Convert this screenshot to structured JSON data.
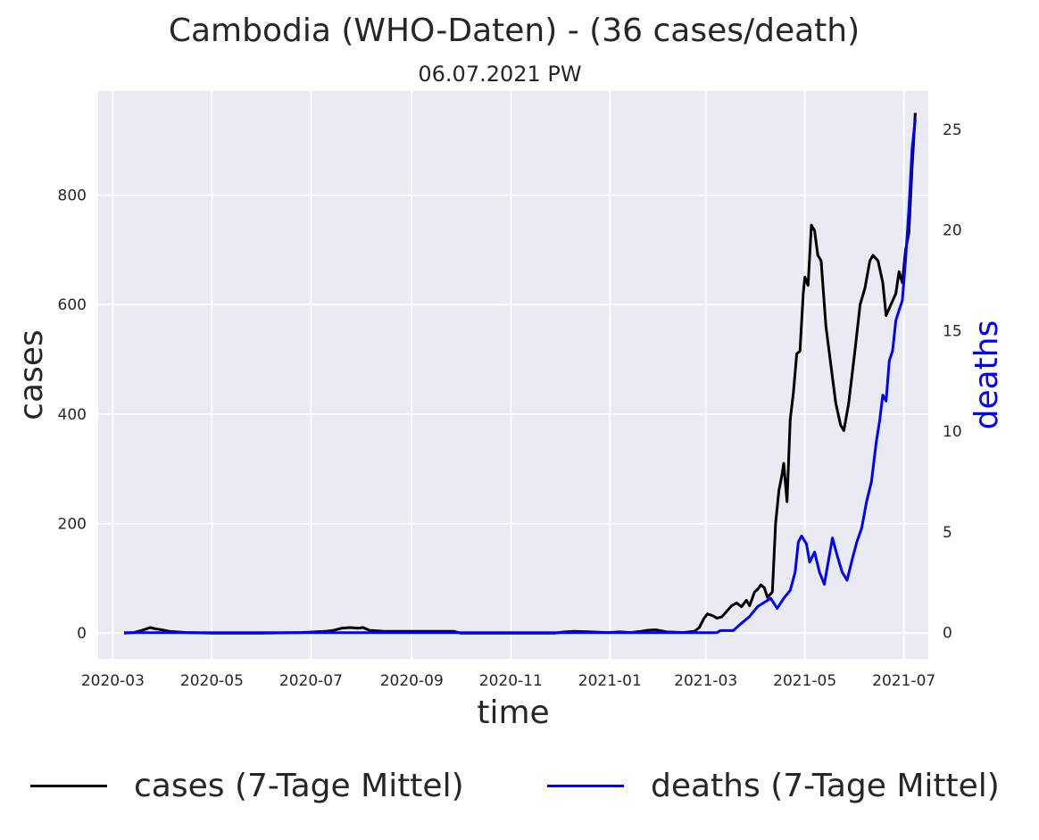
{
  "chart_data": {
    "type": "line",
    "title": "Cambodia (WHO-Daten) - (36 cases/death)",
    "subtitle": "06.07.2021 PW",
    "xlabel": "time",
    "ylabel_left": "cases",
    "ylabel_right": "deaths",
    "x_ticks": [
      "2020-03",
      "2020-05",
      "2020-07",
      "2020-09",
      "2020-11",
      "2021-01",
      "2021-03",
      "2021-05",
      "2021-07"
    ],
    "y_left_ticks": [
      0,
      200,
      400,
      600,
      800
    ],
    "y_right_ticks": [
      0,
      5,
      10,
      15,
      20,
      25
    ],
    "x_range": [
      "2020-02-21",
      "2021-07-16"
    ],
    "y_left_range": [
      -47,
      990
    ],
    "y_right_range": [
      -1.3,
      26.9
    ],
    "grid": true,
    "legend_position": "bottom",
    "background": "#eaeaf2",
    "series": [
      {
        "name": "cases (7-Tage Mittel)",
        "axis": "left",
        "color": "#000000",
        "points": [
          [
            "2020-03-08",
            0
          ],
          [
            "2020-03-14",
            1
          ],
          [
            "2020-03-18",
            4
          ],
          [
            "2020-03-21",
            7
          ],
          [
            "2020-03-24",
            10
          ],
          [
            "2020-03-27",
            8
          ],
          [
            "2020-03-31",
            6
          ],
          [
            "2020-04-05",
            3
          ],
          [
            "2020-04-15",
            1
          ],
          [
            "2020-05-01",
            0
          ],
          [
            "2020-06-01",
            0
          ],
          [
            "2020-06-25",
            1
          ],
          [
            "2020-07-10",
            3
          ],
          [
            "2020-07-15",
            5
          ],
          [
            "2020-07-20",
            9
          ],
          [
            "2020-07-25",
            10
          ],
          [
            "2020-07-30",
            9
          ],
          [
            "2020-08-02",
            10
          ],
          [
            "2020-08-06",
            5
          ],
          [
            "2020-08-15",
            3
          ],
          [
            "2020-08-25",
            3
          ],
          [
            "2020-09-10",
            3
          ],
          [
            "2020-09-27",
            3
          ],
          [
            "2020-10-01",
            0
          ],
          [
            "2020-11-28",
            0
          ],
          [
            "2020-12-04",
            2
          ],
          [
            "2020-12-10",
            3
          ],
          [
            "2020-12-20",
            2
          ],
          [
            "2020-12-31",
            1
          ],
          [
            "2021-01-07",
            2
          ],
          [
            "2021-01-14",
            1
          ],
          [
            "2021-01-20",
            3
          ],
          [
            "2021-01-24",
            5
          ],
          [
            "2021-01-29",
            6
          ],
          [
            "2021-02-05",
            2
          ],
          [
            "2021-02-15",
            1
          ],
          [
            "2021-02-22",
            3
          ],
          [
            "2021-02-25",
            10
          ],
          [
            "2021-02-28",
            27
          ],
          [
            "2021-03-02",
            35
          ],
          [
            "2021-03-05",
            32
          ],
          [
            "2021-03-08",
            27
          ],
          [
            "2021-03-11",
            30
          ],
          [
            "2021-03-14",
            40
          ],
          [
            "2021-03-17",
            50
          ],
          [
            "2021-03-20",
            55
          ],
          [
            "2021-03-23",
            48
          ],
          [
            "2021-03-26",
            60
          ],
          [
            "2021-03-28",
            50
          ],
          [
            "2021-03-31",
            75
          ],
          [
            "2021-04-02",
            80
          ],
          [
            "2021-04-04",
            88
          ],
          [
            "2021-04-06",
            83
          ],
          [
            "2021-04-08",
            65
          ],
          [
            "2021-04-11",
            75
          ],
          [
            "2021-04-13",
            200
          ],
          [
            "2021-04-15",
            260
          ],
          [
            "2021-04-17",
            290
          ],
          [
            "2021-04-18",
            310
          ],
          [
            "2021-04-20",
            240
          ],
          [
            "2021-04-22",
            390
          ],
          [
            "2021-04-24",
            440
          ],
          [
            "2021-04-26",
            510
          ],
          [
            "2021-04-28",
            515
          ],
          [
            "2021-04-30",
            620
          ],
          [
            "2021-05-01",
            650
          ],
          [
            "2021-05-03",
            635
          ],
          [
            "2021-05-05",
            745
          ],
          [
            "2021-05-07",
            735
          ],
          [
            "2021-05-09",
            690
          ],
          [
            "2021-05-11",
            680
          ],
          [
            "2021-05-14",
            560
          ],
          [
            "2021-05-17",
            490
          ],
          [
            "2021-05-20",
            420
          ],
          [
            "2021-05-23",
            380
          ],
          [
            "2021-05-25",
            370
          ],
          [
            "2021-05-28",
            420
          ],
          [
            "2021-06-01",
            520
          ],
          [
            "2021-06-04",
            600
          ],
          [
            "2021-06-07",
            630
          ],
          [
            "2021-06-10",
            680
          ],
          [
            "2021-06-12",
            690
          ],
          [
            "2021-06-15",
            680
          ],
          [
            "2021-06-18",
            640
          ],
          [
            "2021-06-20",
            580
          ],
          [
            "2021-06-23",
            600
          ],
          [
            "2021-06-26",
            620
          ],
          [
            "2021-06-28",
            660
          ],
          [
            "2021-06-30",
            640
          ],
          [
            "2021-07-02",
            700
          ],
          [
            "2021-07-04",
            730
          ],
          [
            "2021-07-06",
            850
          ],
          [
            "2021-07-08",
            950
          ]
        ]
      },
      {
        "name": "deaths (7-Tage Mittel)",
        "axis": "right",
        "color": "#0000ff",
        "points": [
          [
            "2020-03-08",
            0
          ],
          [
            "2021-03-08",
            0
          ],
          [
            "2021-03-10",
            0.1
          ],
          [
            "2021-03-18",
            0.1
          ],
          [
            "2021-03-22",
            0.4
          ],
          [
            "2021-03-28",
            0.8
          ],
          [
            "2021-04-02",
            1.3
          ],
          [
            "2021-04-06",
            1.5
          ],
          [
            "2021-04-10",
            1.7
          ],
          [
            "2021-04-14",
            1.2
          ],
          [
            "2021-04-18",
            1.7
          ],
          [
            "2021-04-22",
            2.1
          ],
          [
            "2021-04-25",
            3.0
          ],
          [
            "2021-04-27",
            4.5
          ],
          [
            "2021-04-29",
            4.8
          ],
          [
            "2021-05-02",
            4.4
          ],
          [
            "2021-05-04",
            3.5
          ],
          [
            "2021-05-07",
            4.0
          ],
          [
            "2021-05-10",
            3.0
          ],
          [
            "2021-05-13",
            2.4
          ],
          [
            "2021-05-16",
            3.8
          ],
          [
            "2021-05-18",
            4.7
          ],
          [
            "2021-05-21",
            3.8
          ],
          [
            "2021-05-24",
            3.0
          ],
          [
            "2021-05-27",
            2.6
          ],
          [
            "2021-05-30",
            3.6
          ],
          [
            "2021-06-02",
            4.5
          ],
          [
            "2021-06-05",
            5.2
          ],
          [
            "2021-06-08",
            6.5
          ],
          [
            "2021-06-11",
            7.5
          ],
          [
            "2021-06-14",
            9.5
          ],
          [
            "2021-06-16",
            10.5
          ],
          [
            "2021-06-18",
            11.8
          ],
          [
            "2021-06-20",
            11.5
          ],
          [
            "2021-06-22",
            13.5
          ],
          [
            "2021-06-24",
            14.0
          ],
          [
            "2021-06-26",
            15.5
          ],
          [
            "2021-06-28",
            16.0
          ],
          [
            "2021-06-30",
            16.5
          ],
          [
            "2021-07-02",
            18.5
          ],
          [
            "2021-07-04",
            21.0
          ],
          [
            "2021-07-06",
            24.0
          ],
          [
            "2021-07-08",
            25.5
          ]
        ]
      }
    ]
  }
}
